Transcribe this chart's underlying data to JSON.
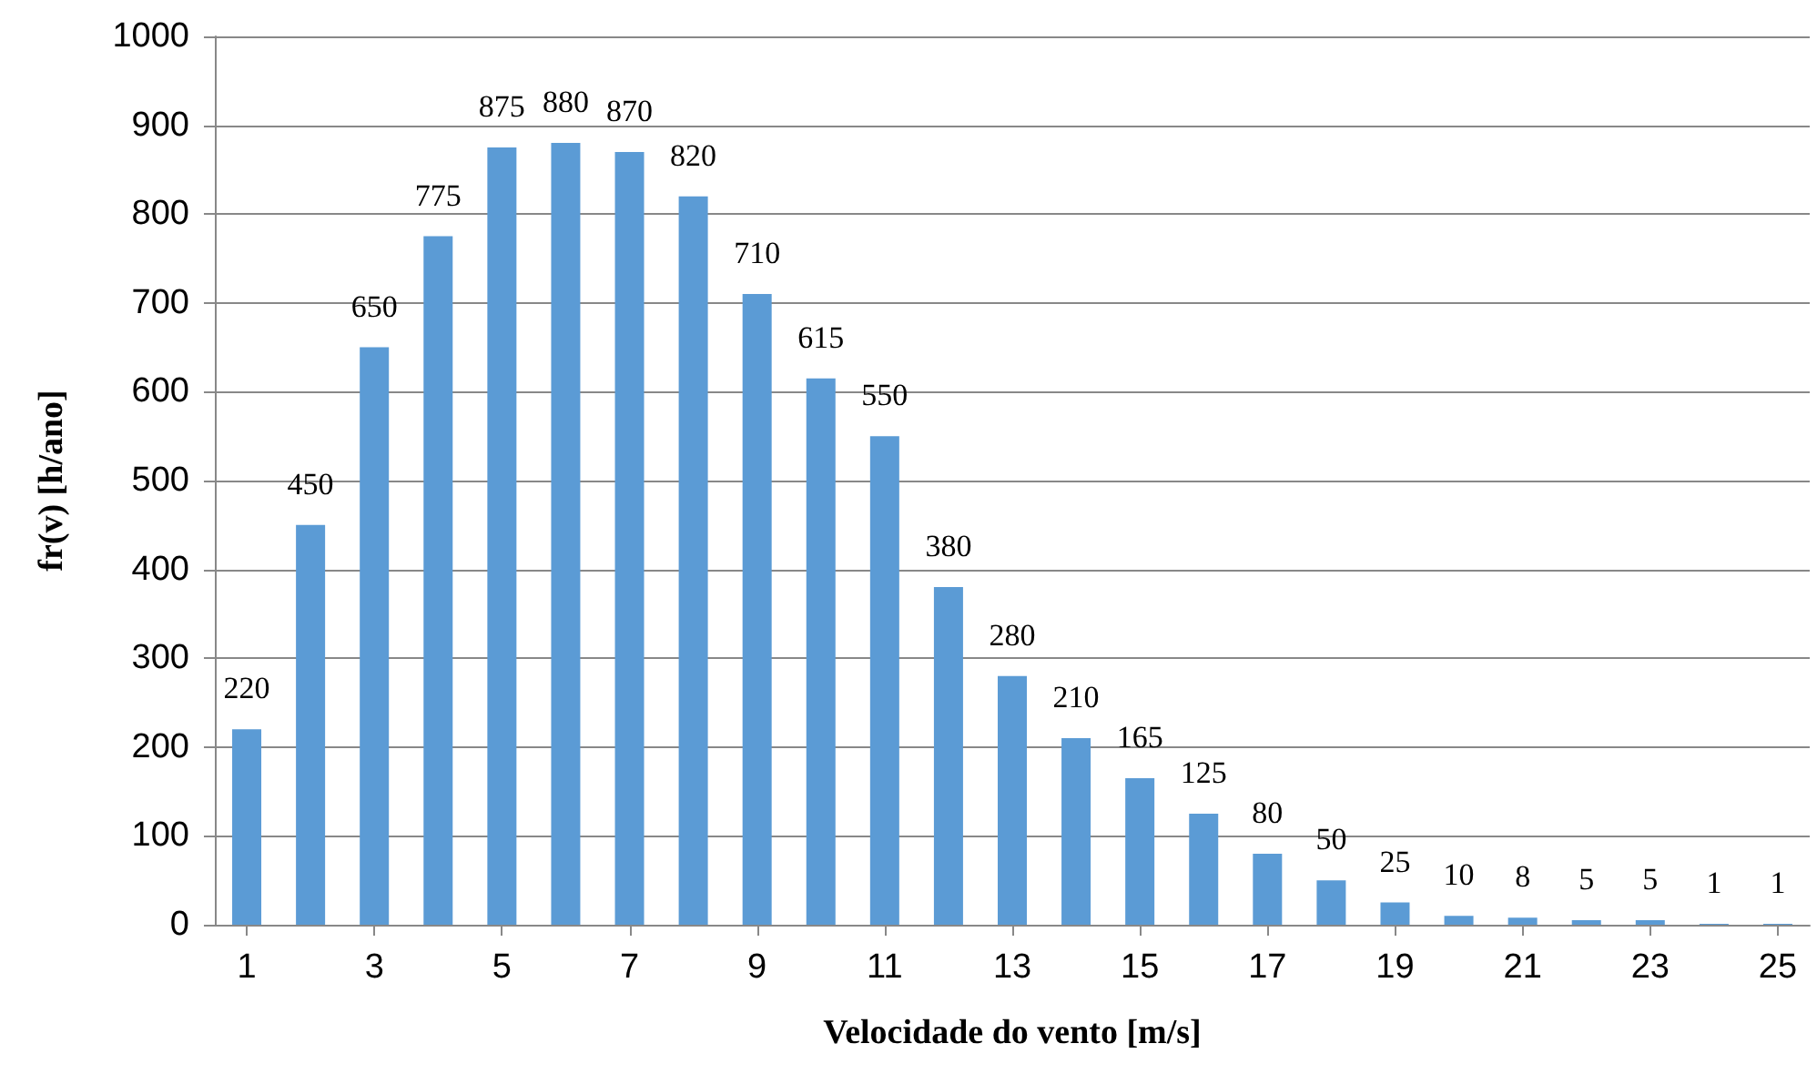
{
  "chart_data": {
    "type": "bar",
    "xlabel": "Velocidade do vento [m/s]",
    "ylabel": "fr(v) [h/ano]",
    "x": [
      1,
      2,
      3,
      4,
      5,
      6,
      7,
      8,
      9,
      10,
      11,
      12,
      13,
      14,
      15,
      16,
      17,
      18,
      19,
      20,
      21,
      22,
      23,
      24,
      25
    ],
    "xlim": [
      0.5,
      25.5
    ],
    "xticks": [
      1,
      3,
      5,
      7,
      9,
      11,
      13,
      15,
      17,
      19,
      21,
      23,
      25
    ],
    "values": [
      220,
      450,
      650,
      775,
      875,
      880,
      870,
      820,
      710,
      615,
      550,
      380,
      280,
      210,
      165,
      125,
      80,
      50,
      25,
      10,
      8,
      5,
      5,
      1,
      1
    ],
    "color": "#5b9bd5",
    "ylim": [
      0,
      1000
    ],
    "yticks": [
      0,
      100,
      200,
      300,
      400,
      500,
      600,
      700,
      800,
      900,
      1000
    ],
    "grid": "y",
    "data_labels": true
  }
}
